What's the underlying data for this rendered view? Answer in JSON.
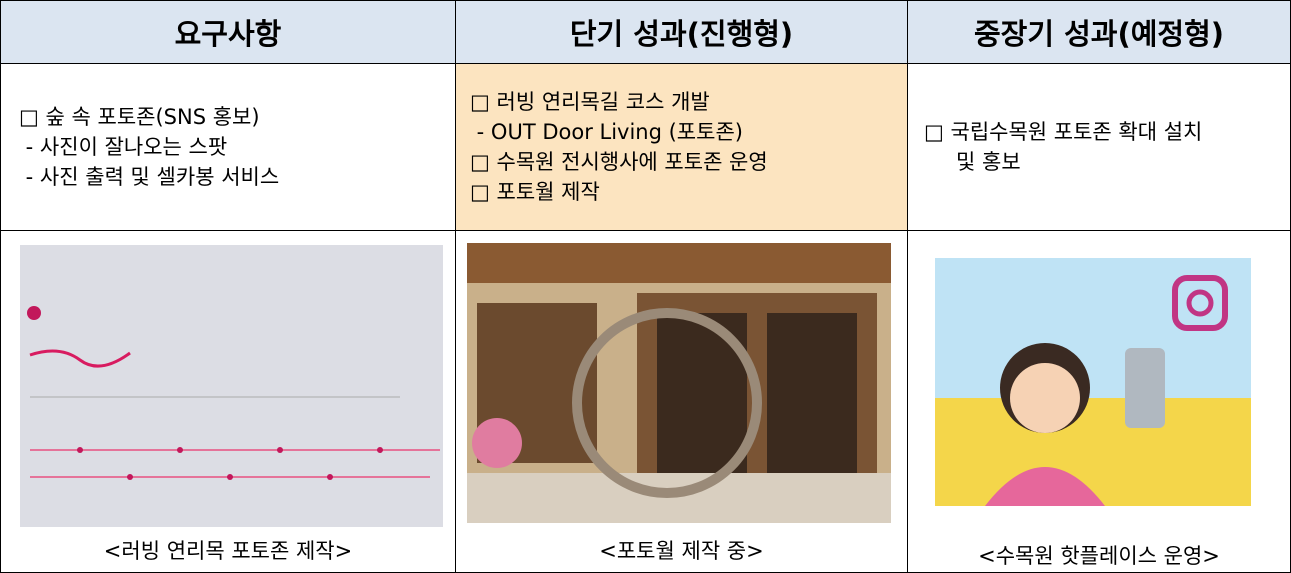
{
  "table": {
    "header": [
      "요구사항",
      "단기 성과(진행형)",
      "중장기 성과(예정형)"
    ],
    "cells": [
      [
        "□ 숲 속 포토존(SNS 홍보)",
        " - 사진이 잘나오는 스팟",
        " - 사진 출력 및 셀카봉 서비스"
      ],
      [
        "□ 러빙 연리목길 코스 개발",
        " - OUT Door Living (포토존)",
        "□ 수목원 전시행사에 포토존 운영",
        "□ 포토월 제작"
      ],
      [
        "□ 국립수목원 포토존 확대 설치",
        "및 홍보"
      ]
    ],
    "captions": [
      "<러빙 연리목 포토존 제작>",
      "<포토월 제작 중>",
      "<수목원 핫플레이스 운영>"
    ]
  }
}
